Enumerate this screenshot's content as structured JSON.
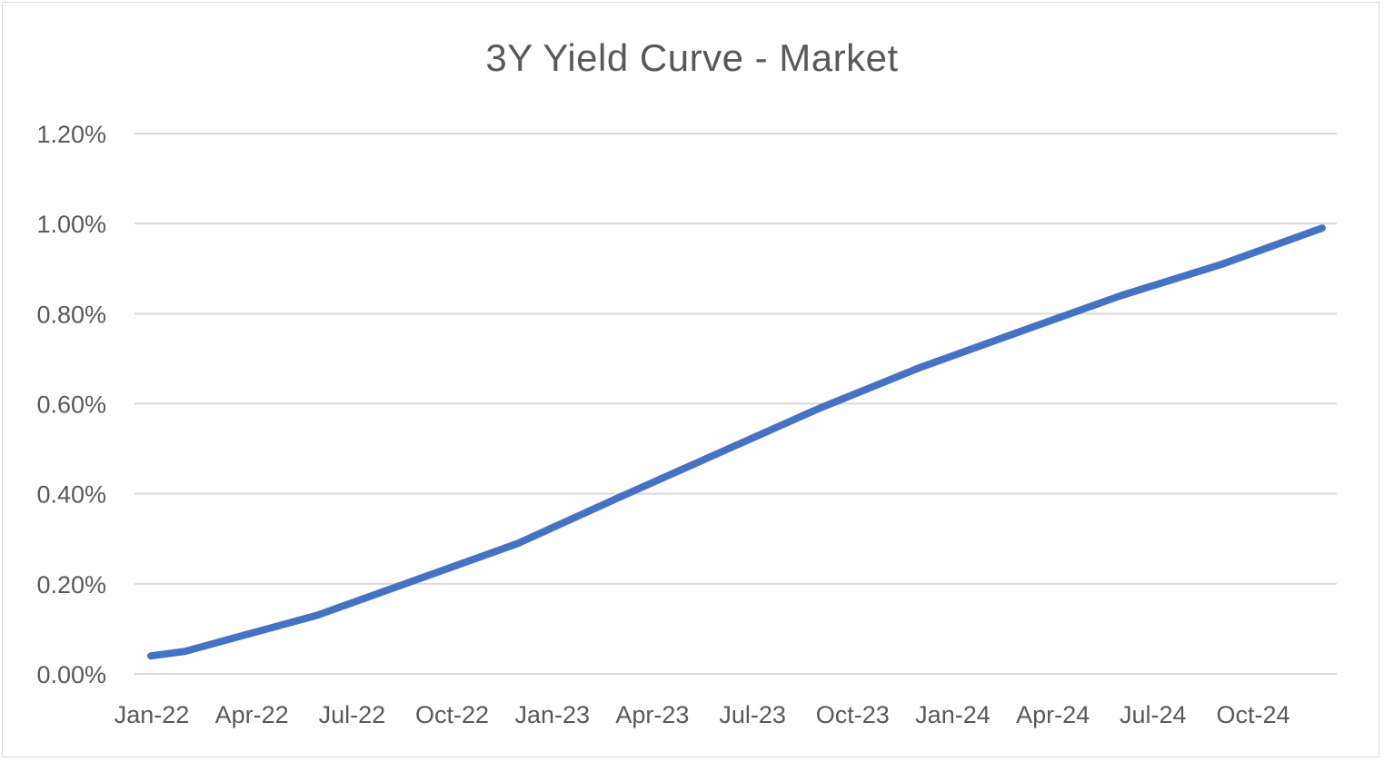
{
  "chart_data": {
    "type": "line",
    "title": "3Y Yield Curve - Market",
    "xlabel": "",
    "ylabel": "",
    "x_tick_labels": [
      "Jan-22",
      "Apr-22",
      "Jul-22",
      "Oct-22",
      "Jan-23",
      "Apr-23",
      "Jul-23",
      "Oct-23",
      "Jan-24",
      "Apr-24",
      "Jul-24",
      "Oct-24"
    ],
    "y_tick_labels": [
      "0.00%",
      "0.20%",
      "0.40%",
      "0.60%",
      "0.80%",
      "1.00%",
      "1.20%"
    ],
    "ylim": [
      0,
      1.2
    ],
    "y_unit": "%",
    "grid": true,
    "legend": "none",
    "series": [
      {
        "color": "#4472C4",
        "x": [
          "2022-01-01",
          "2022-02-01",
          "2022-06-01",
          "2022-12-01",
          "2023-03-01",
          "2023-06-01",
          "2023-09-01",
          "2023-12-01",
          "2024-03-01",
          "2024-06-01",
          "2024-09-01",
          "2024-12-01"
        ],
        "values": [
          0.04,
          0.05,
          0.13,
          0.29,
          0.39,
          0.49,
          0.59,
          0.68,
          0.76,
          0.84,
          0.91,
          0.99
        ]
      }
    ]
  }
}
